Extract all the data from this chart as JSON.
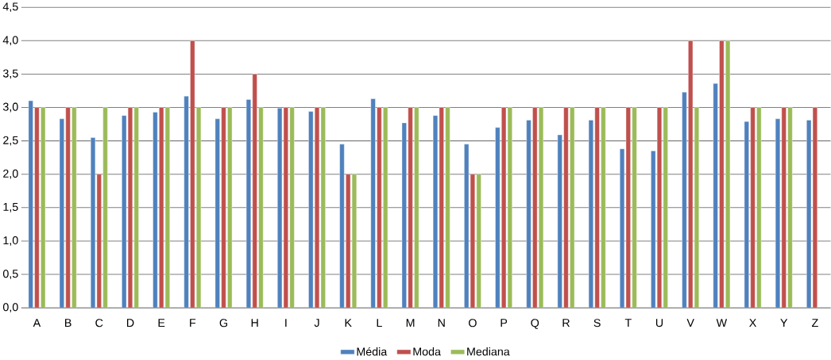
{
  "chart_data": {
    "type": "bar",
    "categories": [
      "A",
      "B",
      "C",
      "D",
      "E",
      "F",
      "G",
      "H",
      "I",
      "J",
      "K",
      "L",
      "M",
      "N",
      "O",
      "P",
      "Q",
      "R",
      "S",
      "T",
      "U",
      "V",
      "W",
      "X",
      "Y",
      "Z"
    ],
    "series": [
      {
        "name": "Média",
        "color": "#4f81bd",
        "values": [
          3.1,
          2.83,
          2.55,
          2.88,
          2.93,
          3.17,
          2.83,
          3.12,
          2.99,
          2.94,
          2.45,
          3.13,
          2.77,
          2.88,
          2.45,
          2.7,
          2.81,
          2.59,
          2.81,
          2.38,
          2.35,
          3.23,
          3.36,
          2.79,
          2.83,
          2.81
        ]
      },
      {
        "name": "Moda",
        "color": "#c0504d",
        "values": [
          3,
          3,
          2,
          3,
          3,
          4,
          3,
          3.5,
          3,
          3,
          2,
          3,
          3,
          3,
          2,
          3,
          3,
          3,
          3,
          3,
          3,
          4,
          4,
          3,
          3,
          3
        ]
      },
      {
        "name": "Mediana",
        "color": "#9bbb59",
        "values": [
          3,
          3,
          3,
          3,
          3,
          3,
          3,
          3,
          3,
          3,
          2,
          3,
          3,
          3,
          2,
          3,
          3,
          3,
          3,
          3,
          3,
          3,
          4,
          3,
          3,
          null
        ]
      }
    ],
    "ylim": [
      0,
      4.5
    ],
    "yticks": [
      {
        "value": 0,
        "label": "0,0"
      },
      {
        "value": 0.5,
        "label": "0,5"
      },
      {
        "value": 1,
        "label": "1,0"
      },
      {
        "value": 1.5,
        "label": "1,5"
      },
      {
        "value": 2,
        "label": "2,0"
      },
      {
        "value": 2.5,
        "label": "2,5"
      },
      {
        "value": 3,
        "label": "3,0"
      },
      {
        "value": 3.5,
        "label": "3,5"
      },
      {
        "value": 4,
        "label": "4,0"
      },
      {
        "value": 4.5,
        "label": "4,5"
      }
    ],
    "grid": "y",
    "legend": "bottom"
  }
}
